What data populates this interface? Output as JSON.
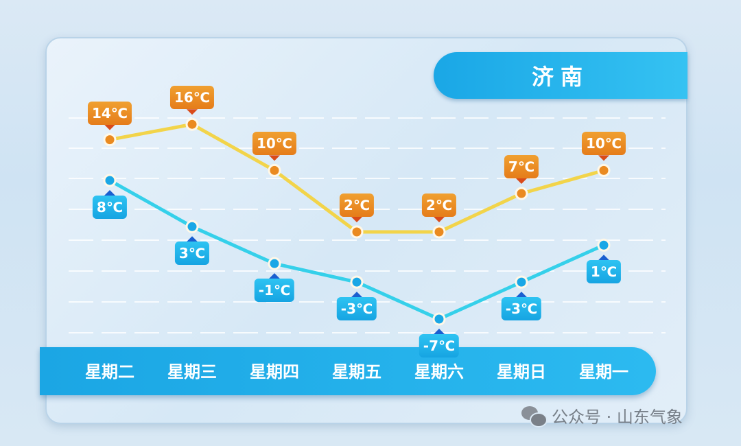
{
  "title": "济南",
  "watermark": "公众号 · 山东气象",
  "colors": {
    "high": "#f2d44a",
    "high_marker": "#ea8a20",
    "low": "#35d0ea",
    "low_marker": "#1aa7e6",
    "accent": "#1aa7e6"
  },
  "chart_data": {
    "type": "line",
    "categories": [
      "星期二",
      "星期三",
      "星期四",
      "星期五",
      "星期六",
      "星期日",
      "星期一"
    ],
    "unit": "℃",
    "grid": true,
    "series": [
      {
        "key": "high",
        "values": [
          14,
          16,
          10,
          2,
          2,
          7,
          10
        ],
        "labels": [
          "14℃",
          "16℃",
          "10℃",
          "2℃",
          "2℃",
          "7℃",
          "10℃"
        ]
      },
      {
        "key": "low",
        "values": [
          8,
          3,
          -1,
          -3,
          -7,
          -3,
          1
        ],
        "labels": [
          "8℃",
          "3℃",
          "-1℃",
          "-3℃",
          "-7℃",
          "-3℃",
          "1℃"
        ]
      }
    ]
  }
}
